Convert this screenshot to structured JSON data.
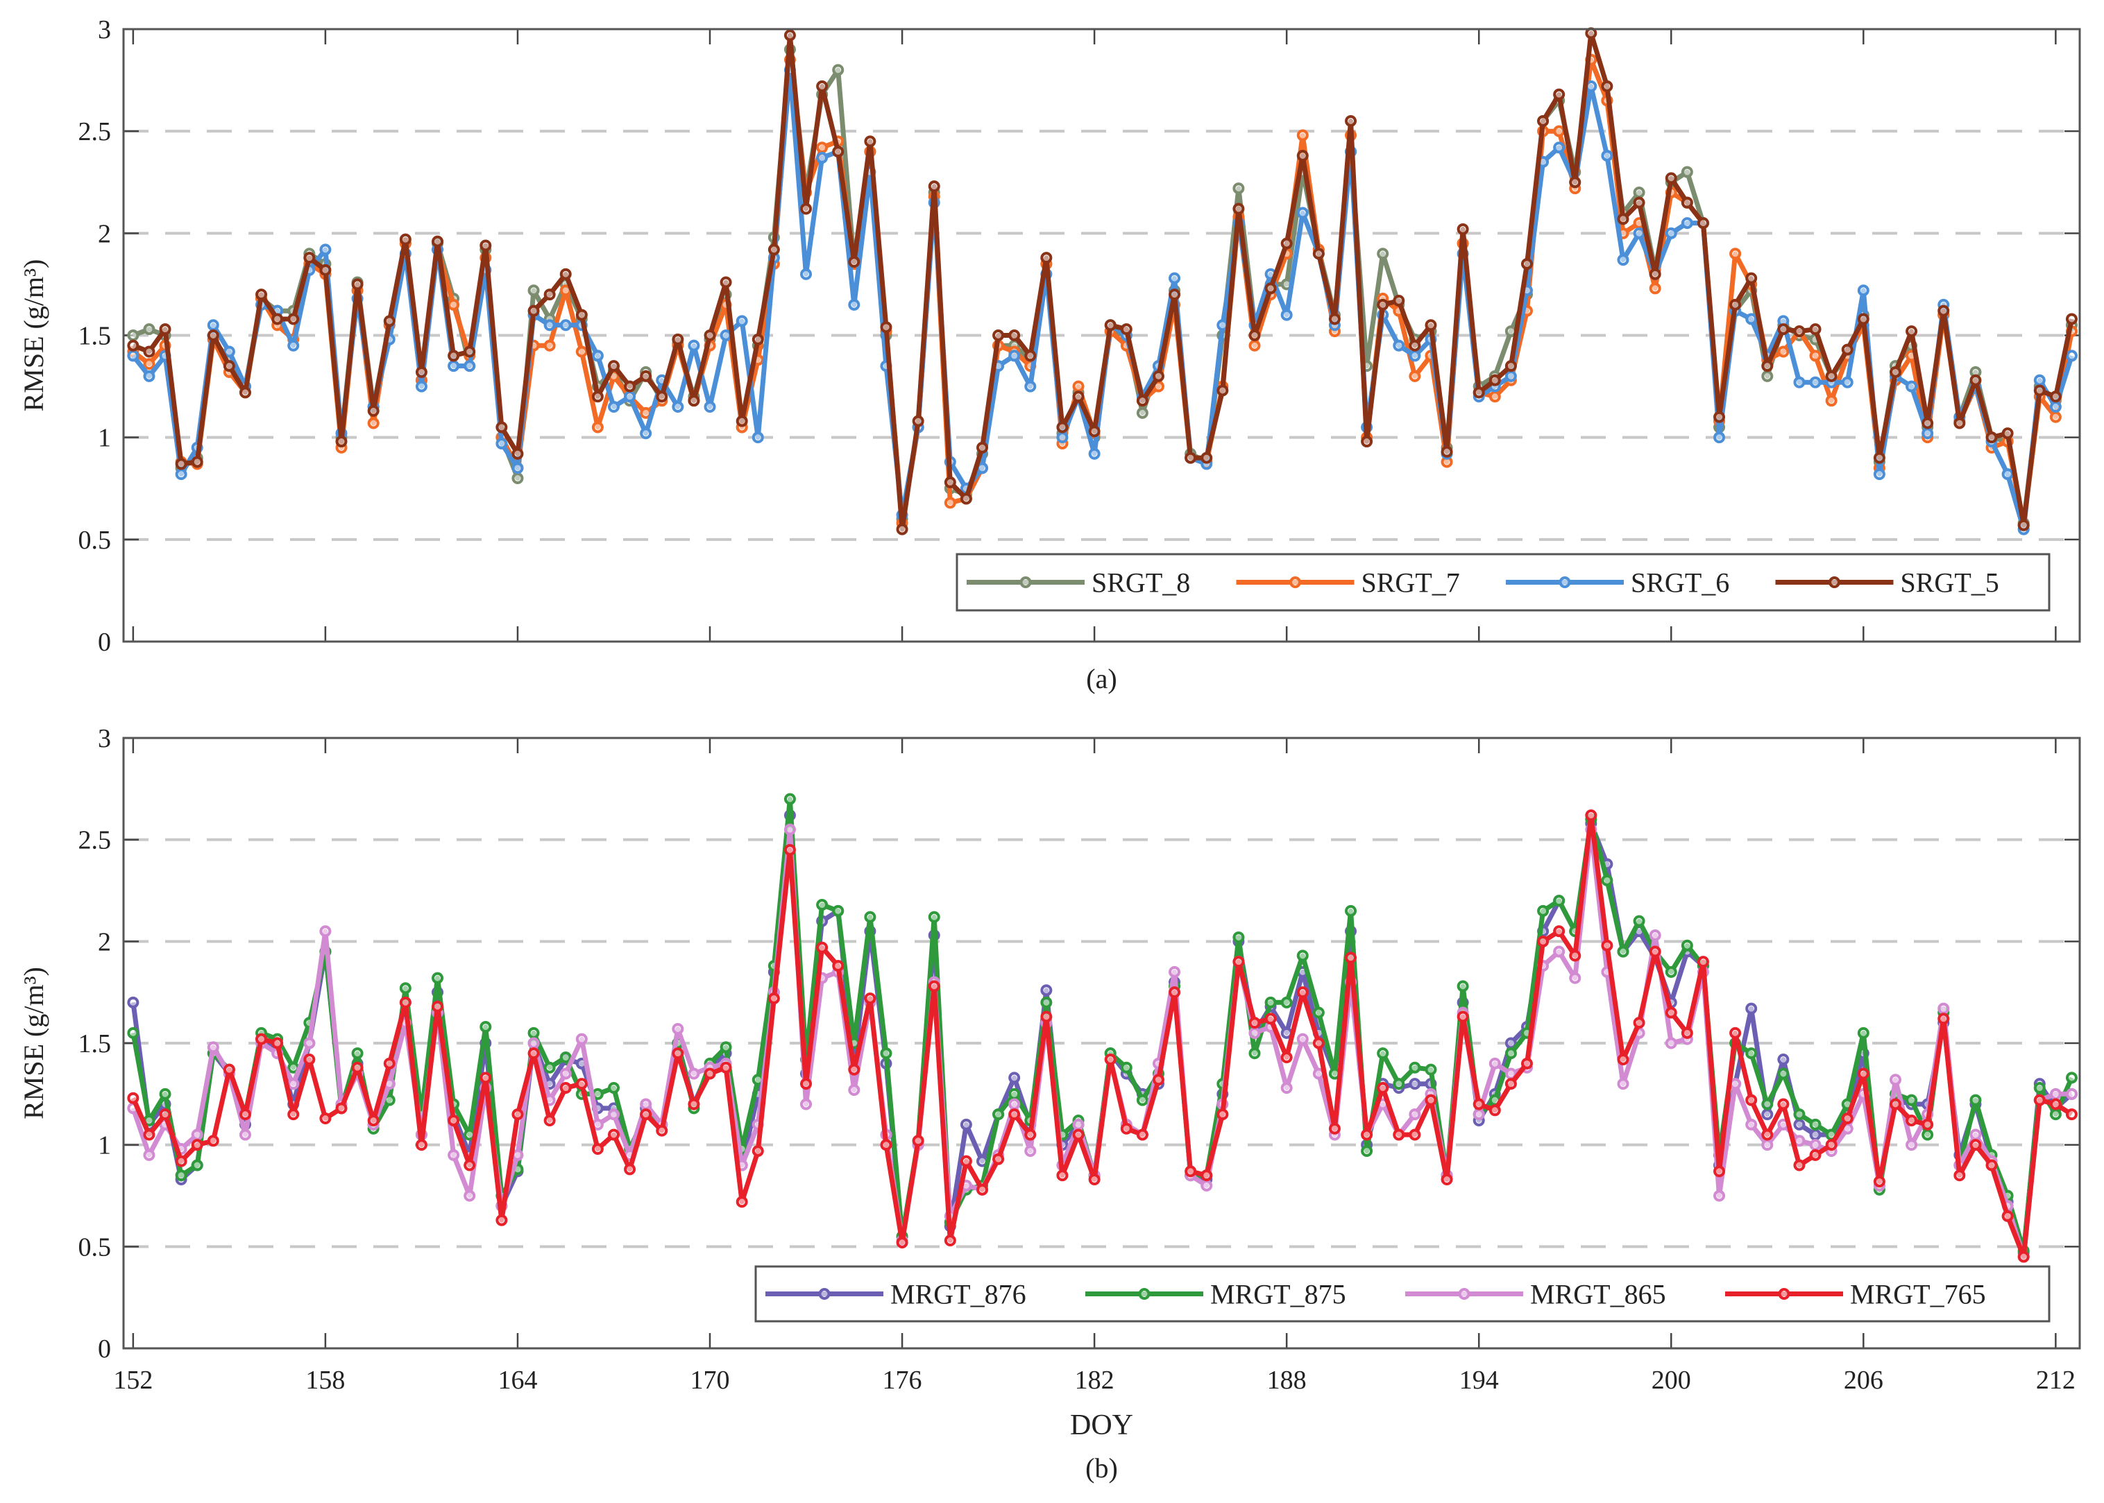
{
  "chart_data": [
    {
      "type": "line",
      "caption": "(a)",
      "xlabel": "",
      "ylabel": "RMSE (g/m³)",
      "ylim": [
        0,
        3
      ],
      "xlim": [
        151.7,
        212.75
      ],
      "x_start": 152,
      "x_step": 0.5,
      "yticks": [
        "0",
        "0.5",
        "1",
        "1.5",
        "2",
        "2.5",
        "3"
      ],
      "ytick_values": [
        0,
        0.5,
        1,
        1.5,
        2,
        2.5,
        3
      ],
      "xtick_values": [
        152,
        158,
        164,
        170,
        176,
        182,
        188,
        194,
        200,
        206,
        212
      ],
      "xtick_labels": [],
      "grid": "horizontal dashed",
      "legend_position": "bottom-right",
      "series": [
        {
          "name": "SRGT_8",
          "color": "#7b8c6f",
          "values": [
            1.5,
            1.53,
            1.5,
            0.85,
            0.9,
            1.48,
            1.38,
            1.25,
            1.68,
            1.62,
            1.62,
            1.9,
            1.85,
            1.0,
            1.76,
            1.15,
            1.55,
            1.95,
            1.28,
            1.95,
            1.68,
            1.35,
            1.92,
            1.0,
            0.8,
            1.72,
            1.58,
            1.75,
            1.58,
            1.25,
            1.33,
            1.18,
            1.32,
            1.18,
            1.46,
            1.2,
            1.48,
            1.7,
            1.05,
            1.45,
            1.98,
            2.9,
            2.2,
            2.68,
            2.8,
            1.85,
            2.4,
            1.5,
            0.6,
            1.05,
            2.2,
            0.75,
            0.72,
            0.92,
            1.45,
            1.45,
            1.38,
            1.85,
            1.02,
            1.22,
            1.0,
            1.52,
            1.5,
            1.12,
            1.35,
            1.72,
            0.92,
            0.88,
            1.5,
            2.22,
            1.55,
            1.75,
            1.75,
            2.3,
            1.92,
            1.6,
            2.4,
            1.35,
            1.9,
            1.65,
            1.48,
            1.52,
            0.95,
            1.95,
            1.25,
            1.3,
            1.52,
            1.7,
            2.55,
            2.65,
            2.3,
            2.85,
            2.65,
            2.1,
            2.2,
            1.82,
            2.25,
            2.3,
            2.05,
            1.05,
            1.62,
            1.72,
            1.3,
            1.55,
            1.5,
            1.48,
            1.3,
            1.4,
            1.6,
            0.88,
            1.35,
            1.45,
            1.05,
            1.6,
            1.1,
            1.32,
            1.0,
            0.98,
            0.58,
            1.25,
            1.18,
            1.55
          ]
        },
        {
          "name": "SRGT_7",
          "color": "#f26a24",
          "values": [
            1.42,
            1.36,
            1.45,
            0.88,
            0.87,
            1.48,
            1.32,
            1.22,
            1.68,
            1.55,
            1.48,
            1.85,
            1.8,
            0.95,
            1.72,
            1.07,
            1.55,
            1.95,
            1.28,
            1.92,
            1.65,
            1.4,
            1.88,
            1.0,
            0.85,
            1.45,
            1.45,
            1.72,
            1.42,
            1.05,
            1.3,
            1.2,
            1.12,
            1.18,
            1.45,
            1.18,
            1.45,
            1.65,
            1.05,
            1.38,
            1.85,
            2.85,
            2.2,
            2.42,
            2.45,
            1.85,
            2.4,
            1.52,
            0.58,
            1.05,
            2.18,
            0.68,
            0.7,
            0.85,
            1.45,
            1.42,
            1.35,
            1.85,
            0.97,
            1.25,
            1.02,
            1.52,
            1.45,
            1.18,
            1.25,
            1.65,
            0.9,
            0.88,
            1.25,
            2.08,
            1.45,
            1.7,
            1.9,
            2.48,
            1.92,
            1.52,
            2.48,
            1.0,
            1.68,
            1.62,
            1.3,
            1.4,
            0.88,
            1.95,
            1.22,
            1.2,
            1.28,
            1.62,
            2.5,
            2.5,
            2.22,
            2.85,
            2.65,
            2.0,
            2.05,
            1.73,
            2.2,
            2.15,
            2.05,
            1.08,
            1.9,
            1.75,
            1.38,
            1.42,
            1.52,
            1.4,
            1.18,
            1.4,
            1.55,
            0.85,
            1.28,
            1.4,
            1.0,
            1.6,
            1.08,
            1.25,
            0.95,
            0.98,
            0.57,
            1.2,
            1.1,
            1.52
          ]
        },
        {
          "name": "SRGT_6",
          "color": "#4a8fd8",
          "values": [
            1.4,
            1.3,
            1.4,
            0.82,
            0.95,
            1.55,
            1.42,
            1.25,
            1.65,
            1.62,
            1.45,
            1.82,
            1.92,
            1.02,
            1.68,
            1.15,
            1.48,
            1.9,
            1.25,
            1.92,
            1.35,
            1.35,
            1.82,
            0.97,
            0.85,
            1.6,
            1.55,
            1.55,
            1.55,
            1.4,
            1.15,
            1.2,
            1.02,
            1.28,
            1.15,
            1.45,
            1.15,
            1.5,
            1.57,
            1.0,
            1.88,
            2.8,
            1.8,
            2.37,
            2.4,
            1.65,
            2.3,
            1.35,
            0.62,
            1.05,
            2.15,
            0.88,
            0.75,
            0.85,
            1.35,
            1.4,
            1.25,
            1.8,
            1.0,
            1.2,
            0.92,
            1.55,
            1.5,
            1.2,
            1.35,
            1.78,
            0.9,
            0.87,
            1.55,
            2.05,
            1.55,
            1.8,
            1.6,
            2.1,
            1.9,
            1.55,
            2.4,
            1.05,
            1.6,
            1.45,
            1.4,
            1.48,
            0.92,
            1.9,
            1.2,
            1.25,
            1.3,
            1.72,
            2.35,
            2.42,
            2.25,
            2.72,
            2.38,
            1.87,
            2.0,
            1.8,
            2.0,
            2.05,
            2.05,
            1.0,
            1.62,
            1.58,
            1.4,
            1.57,
            1.27,
            1.27,
            1.27,
            1.27,
            1.72,
            0.82,
            1.3,
            1.25,
            1.02,
            1.65,
            1.1,
            1.25,
            0.98,
            0.82,
            0.55,
            1.28,
            1.15,
            1.4
          ]
        },
        {
          "name": "SRGT_5",
          "color": "#8a3216",
          "values": [
            1.45,
            1.42,
            1.53,
            0.87,
            0.88,
            1.5,
            1.35,
            1.22,
            1.7,
            1.58,
            1.58,
            1.88,
            1.82,
            0.98,
            1.75,
            1.13,
            1.57,
            1.97,
            1.32,
            1.96,
            1.4,
            1.42,
            1.94,
            1.05,
            0.92,
            1.62,
            1.7,
            1.8,
            1.6,
            1.2,
            1.35,
            1.25,
            1.3,
            1.2,
            1.48,
            1.18,
            1.5,
            1.76,
            1.08,
            1.48,
            1.92,
            2.97,
            2.12,
            2.72,
            2.4,
            1.86,
            2.45,
            1.54,
            0.55,
            1.08,
            2.23,
            0.78,
            0.7,
            0.95,
            1.5,
            1.5,
            1.4,
            1.88,
            1.05,
            1.2,
            1.03,
            1.55,
            1.53,
            1.18,
            1.3,
            1.7,
            0.9,
            0.9,
            1.23,
            2.12,
            1.5,
            1.73,
            1.95,
            2.38,
            1.9,
            1.58,
            2.55,
            0.98,
            1.65,
            1.67,
            1.45,
            1.55,
            0.93,
            2.02,
            1.22,
            1.28,
            1.35,
            1.85,
            2.55,
            2.68,
            2.25,
            2.98,
            2.72,
            2.07,
            2.15,
            1.8,
            2.27,
            2.15,
            2.05,
            1.1,
            1.65,
            1.78,
            1.35,
            1.53,
            1.52,
            1.53,
            1.3,
            1.43,
            1.58,
            0.9,
            1.32,
            1.52,
            1.07,
            1.62,
            1.07,
            1.28,
            1.0,
            1.02,
            0.57,
            1.23,
            1.2,
            1.58
          ]
        }
      ]
    },
    {
      "type": "line",
      "caption": "(b)",
      "xlabel": "DOY",
      "ylabel": "RMSE (g/m³)",
      "ylim": [
        0,
        3
      ],
      "xlim": [
        151.7,
        212.75
      ],
      "x_start": 152,
      "x_step": 0.5,
      "yticks": [
        "0",
        "0.5",
        "1",
        "1.5",
        "2",
        "2.5",
        "3"
      ],
      "ytick_values": [
        0,
        0.5,
        1,
        1.5,
        2,
        2.5,
        3
      ],
      "xtick_values": [
        152,
        158,
        164,
        170,
        176,
        182,
        188,
        194,
        200,
        206,
        212
      ],
      "xtick_labels": [
        "152",
        "158",
        "164",
        "170",
        "176",
        "182",
        "188",
        "194",
        "200",
        "206",
        "212"
      ],
      "grid": "horizontal dashed",
      "legend_position": "bottom-right",
      "series": [
        {
          "name": "MRGT_876",
          "color": "#6a5fb3",
          "values": [
            1.7,
            1.1,
            1.2,
            0.83,
            0.9,
            1.45,
            1.35,
            1.1,
            1.52,
            1.48,
            1.2,
            1.5,
            1.95,
            1.2,
            1.4,
            1.1,
            1.3,
            1.7,
            1.05,
            1.75,
            1.15,
            0.95,
            1.5,
            0.7,
            0.87,
            1.5,
            1.3,
            1.42,
            1.4,
            1.18,
            1.18,
            0.95,
            1.18,
            1.1,
            1.5,
            1.2,
            1.38,
            1.45,
            0.9,
            1.25,
            1.85,
            2.62,
            1.35,
            2.1,
            2.15,
            1.4,
            2.05,
            1.4,
            0.55,
            1.0,
            2.03,
            0.6,
            1.1,
            0.92,
            1.15,
            1.33,
            1.1,
            1.76,
            1.0,
            1.1,
            0.85,
            1.45,
            1.35,
            1.25,
            1.3,
            1.8,
            0.85,
            0.83,
            1.25,
            2.0,
            1.55,
            1.68,
            1.55,
            1.85,
            1.55,
            1.35,
            2.05,
            1.0,
            1.3,
            1.28,
            1.3,
            1.3,
            0.85,
            1.7,
            1.12,
            1.25,
            1.5,
            1.58,
            2.05,
            2.2,
            2.05,
            2.58,
            2.38,
            1.95,
            2.05,
            1.92,
            1.7,
            1.95,
            1.88,
            0.9,
            1.3,
            1.67,
            1.15,
            1.42,
            1.1,
            1.05,
            1.05,
            1.15,
            1.45,
            0.8,
            1.22,
            1.2,
            1.2,
            1.6,
            0.95,
            1.2,
            0.92,
            0.72,
            0.47,
            1.3,
            1.18,
            1.25
          ]
        },
        {
          "name": "MRGT_875",
          "color": "#2f9a3c",
          "values": [
            1.55,
            1.12,
            1.25,
            0.85,
            0.9,
            1.45,
            1.37,
            1.15,
            1.55,
            1.52,
            1.38,
            1.6,
            1.95,
            1.18,
            1.45,
            1.08,
            1.22,
            1.77,
            1.15,
            1.82,
            1.2,
            1.05,
            1.58,
            0.75,
            0.88,
            1.55,
            1.38,
            1.43,
            1.25,
            1.25,
            1.28,
            0.98,
            1.15,
            1.1,
            1.5,
            1.18,
            1.4,
            1.48,
            0.98,
            1.32,
            1.88,
            2.7,
            1.42,
            2.18,
            2.15,
            1.5,
            2.12,
            1.45,
            0.55,
            1.02,
            2.12,
            0.62,
            0.78,
            0.8,
            1.15,
            1.25,
            1.12,
            1.7,
            1.05,
            1.12,
            0.85,
            1.45,
            1.38,
            1.22,
            1.35,
            1.78,
            0.85,
            0.85,
            1.3,
            2.02,
            1.45,
            1.7,
            1.7,
            1.93,
            1.65,
            1.35,
            2.15,
            0.97,
            1.45,
            1.3,
            1.38,
            1.37,
            0.85,
            1.78,
            1.15,
            1.22,
            1.45,
            1.55,
            2.15,
            2.2,
            2.05,
            2.6,
            2.3,
            1.95,
            2.1,
            1.95,
            1.85,
            1.98,
            1.88,
            0.95,
            1.5,
            1.45,
            1.2,
            1.35,
            1.15,
            1.1,
            1.05,
            1.2,
            1.55,
            0.78,
            1.25,
            1.22,
            1.05,
            1.65,
            0.9,
            1.22,
            0.95,
            0.75,
            0.48,
            1.28,
            1.15,
            1.33
          ]
        },
        {
          "name": "MRGT_865",
          "color": "#d28ad2",
          "values": [
            1.18,
            0.95,
            1.1,
            0.98,
            1.05,
            1.48,
            1.35,
            1.05,
            1.5,
            1.45,
            1.3,
            1.5,
            2.05,
            1.2,
            1.35,
            1.1,
            1.3,
            1.6,
            1.05,
            1.65,
            0.95,
            0.75,
            1.28,
            0.7,
            0.95,
            1.5,
            1.22,
            1.35,
            1.52,
            1.1,
            1.15,
            0.95,
            1.2,
            1.1,
            1.57,
            1.35,
            1.38,
            1.4,
            0.9,
            1.1,
            1.75,
            2.55,
            1.2,
            1.82,
            1.85,
            1.27,
            1.7,
            1.05,
            0.53,
            1.0,
            1.8,
            0.65,
            0.8,
            0.78,
            0.95,
            1.2,
            0.97,
            1.6,
            0.9,
            1.1,
            0.85,
            1.42,
            1.1,
            1.05,
            1.4,
            1.85,
            0.85,
            0.8,
            1.2,
            1.9,
            1.55,
            1.58,
            1.28,
            1.52,
            1.35,
            1.05,
            1.8,
            1.05,
            1.2,
            1.05,
            1.15,
            1.25,
            0.85,
            1.65,
            1.15,
            1.4,
            1.35,
            1.38,
            1.88,
            1.95,
            1.82,
            2.55,
            1.85,
            1.3,
            1.55,
            2.03,
            1.5,
            1.52,
            1.85,
            0.75,
            1.3,
            1.1,
            1.0,
            1.1,
            1.02,
            1.0,
            0.97,
            1.08,
            1.25,
            0.8,
            1.32,
            1.0,
            1.15,
            1.67,
            0.9,
            1.05,
            0.92,
            0.7,
            0.45,
            1.22,
            1.25,
            1.25
          ]
        },
        {
          "name": "MRGT_765",
          "color": "#e8202a",
          "values": [
            1.23,
            1.05,
            1.15,
            0.92,
            1.0,
            1.02,
            1.37,
            1.15,
            1.52,
            1.5,
            1.15,
            1.42,
            1.13,
            1.18,
            1.38,
            1.12,
            1.4,
            1.7,
            1.0,
            1.68,
            1.12,
            0.9,
            1.33,
            0.63,
            1.15,
            1.45,
            1.12,
            1.28,
            1.3,
            0.98,
            1.05,
            0.88,
            1.15,
            1.07,
            1.45,
            1.2,
            1.35,
            1.38,
            0.72,
            0.97,
            1.72,
            2.45,
            1.3,
            1.97,
            1.88,
            1.37,
            1.72,
            1.0,
            0.52,
            1.02,
            1.78,
            0.53,
            0.92,
            0.78,
            0.93,
            1.15,
            1.05,
            1.63,
            0.85,
            1.05,
            0.83,
            1.42,
            1.08,
            1.05,
            1.32,
            1.75,
            0.87,
            0.85,
            1.15,
            1.9,
            1.6,
            1.62,
            1.43,
            1.75,
            1.5,
            1.08,
            1.92,
            1.05,
            1.28,
            1.05,
            1.05,
            1.22,
            0.83,
            1.63,
            1.2,
            1.17,
            1.3,
            1.4,
            2.0,
            2.05,
            1.93,
            2.62,
            1.98,
            1.42,
            1.6,
            1.95,
            1.65,
            1.55,
            1.9,
            0.87,
            1.55,
            1.22,
            1.05,
            1.2,
            0.9,
            0.95,
            1.0,
            1.13,
            1.35,
            0.82,
            1.2,
            1.12,
            1.1,
            1.62,
            0.85,
            1.0,
            0.9,
            0.65,
            0.45,
            1.22,
            1.2,
            1.15
          ]
        }
      ]
    }
  ]
}
